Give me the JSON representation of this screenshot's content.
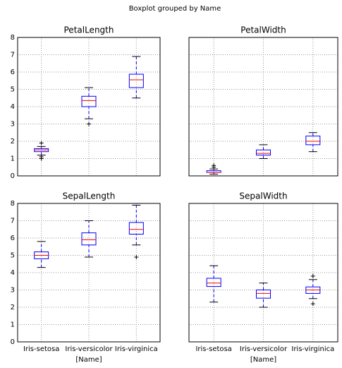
{
  "title": "Boxplot grouped by Name",
  "chart_data": [
    {
      "type": "box",
      "title": "PetalLength",
      "categories": [
        null,
        null,
        null
      ],
      "boxes": [
        {
          "whislo": 1.2,
          "q1": 1.4,
          "med": 1.5,
          "q3": 1.575,
          "whishi": 1.7,
          "fliers": [
            1.0,
            1.1,
            1.9
          ]
        },
        {
          "whislo": 3.3,
          "q1": 4.0,
          "med": 4.35,
          "q3": 4.6,
          "whishi": 5.1,
          "fliers": [
            3.0
          ]
        },
        {
          "whislo": 4.5,
          "q1": 5.1,
          "med": 5.55,
          "q3": 5.875,
          "whishi": 6.9,
          "fliers": []
        }
      ],
      "ylim": [
        0,
        8
      ],
      "yticks": [
        0,
        1,
        2,
        3,
        4,
        5,
        6,
        7,
        8
      ],
      "grid": true,
      "box_color": "#0000ff",
      "median_color": "#ff0000",
      "flier_color": "#000000"
    },
    {
      "type": "box",
      "title": "PetalWidth",
      "categories": [
        null,
        null,
        null
      ],
      "boxes": [
        {
          "whislo": 0.1,
          "q1": 0.2,
          "med": 0.2,
          "q3": 0.3,
          "whishi": 0.4,
          "fliers": [
            0.5,
            0.6
          ]
        },
        {
          "whislo": 1.0,
          "q1": 1.2,
          "med": 1.3,
          "q3": 1.5,
          "whishi": 1.8,
          "fliers": []
        },
        {
          "whislo": 1.4,
          "q1": 1.8,
          "med": 2.0,
          "q3": 2.3,
          "whishi": 2.5,
          "fliers": []
        }
      ],
      "ylim": [
        0,
        8
      ],
      "yticks": [
        0,
        1,
        2,
        3,
        4,
        5,
        6,
        7,
        8
      ],
      "grid": true,
      "box_color": "#0000ff",
      "median_color": "#ff0000",
      "flier_color": "#000000"
    },
    {
      "type": "box",
      "title": "SepalLength",
      "categories": [
        "Iris-setosa",
        "Iris-versicolor",
        "Iris-virginica"
      ],
      "xlabel": "[Name]",
      "boxes": [
        {
          "whislo": 4.3,
          "q1": 4.8,
          "med": 5.0,
          "q3": 5.2,
          "whishi": 5.8,
          "fliers": []
        },
        {
          "whislo": 4.9,
          "q1": 5.6,
          "med": 5.9,
          "q3": 6.3,
          "whishi": 7.0,
          "fliers": []
        },
        {
          "whislo": 5.6,
          "q1": 6.225,
          "med": 6.5,
          "q3": 6.9,
          "whishi": 7.9,
          "fliers": [
            4.9
          ]
        }
      ],
      "ylim": [
        0,
        8
      ],
      "yticks": [
        0,
        1,
        2,
        3,
        4,
        5,
        6,
        7,
        8
      ],
      "grid": true,
      "box_color": "#0000ff",
      "median_color": "#ff0000",
      "flier_color": "#000000"
    },
    {
      "type": "box",
      "title": "SepalWidth",
      "categories": [
        "Iris-setosa",
        "Iris-versicolor",
        "Iris-virginica"
      ],
      "xlabel": "[Name]",
      "boxes": [
        {
          "whislo": 2.3,
          "q1": 3.2,
          "med": 3.4,
          "q3": 3.675,
          "whishi": 4.4,
          "fliers": []
        },
        {
          "whislo": 2.0,
          "q1": 2.525,
          "med": 2.8,
          "q3": 3.0,
          "whishi": 3.4,
          "fliers": []
        },
        {
          "whislo": 2.5,
          "q1": 2.8,
          "med": 3.0,
          "q3": 3.175,
          "whishi": 3.6,
          "fliers": [
            2.2,
            3.8
          ]
        }
      ],
      "ylim": [
        0,
        8
      ],
      "yticks": [
        0,
        1,
        2,
        3,
        4,
        5,
        6,
        7,
        8
      ],
      "grid": true,
      "box_color": "#0000ff",
      "median_color": "#ff0000",
      "flier_color": "#000000"
    }
  ]
}
